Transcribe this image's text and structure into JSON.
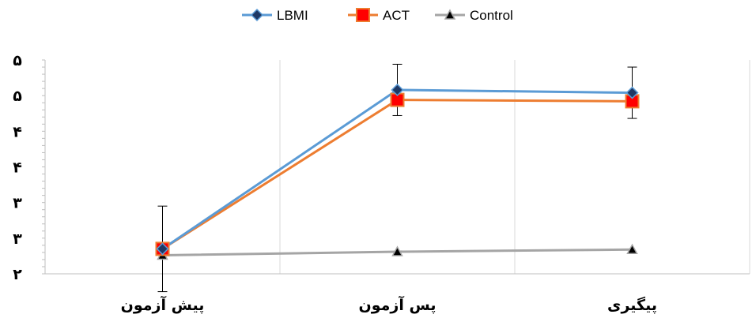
{
  "chart_data": {
    "type": "line",
    "categories": [
      "پیش آزمون",
      "پس آزمون",
      "پیگیری"
    ],
    "y_tick_labels": [
      "۲",
      "۳",
      "۳",
      "۴",
      "۴",
      "۵",
      "۵"
    ],
    "ylim": [
      2,
      5
    ],
    "grid": "vertical",
    "legend_position": "top",
    "series": [
      {
        "name": "LBMI",
        "values": [
          2.35,
          4.58,
          4.54
        ],
        "error": [
          0.6,
          0.36,
          0.36
        ],
        "color": "#5b9bd5",
        "marker": "diamond"
      },
      {
        "name": "ACT",
        "values": [
          2.35,
          4.44,
          4.42
        ],
        "error": [
          0,
          0,
          0
        ],
        "color": "#ed7d31",
        "marker": "square"
      },
      {
        "name": "Control",
        "values": [
          2.26,
          2.31,
          2.34
        ],
        "error": [
          0,
          0,
          0
        ],
        "color": "#a5a5a5",
        "marker": "triangle"
      }
    ]
  }
}
